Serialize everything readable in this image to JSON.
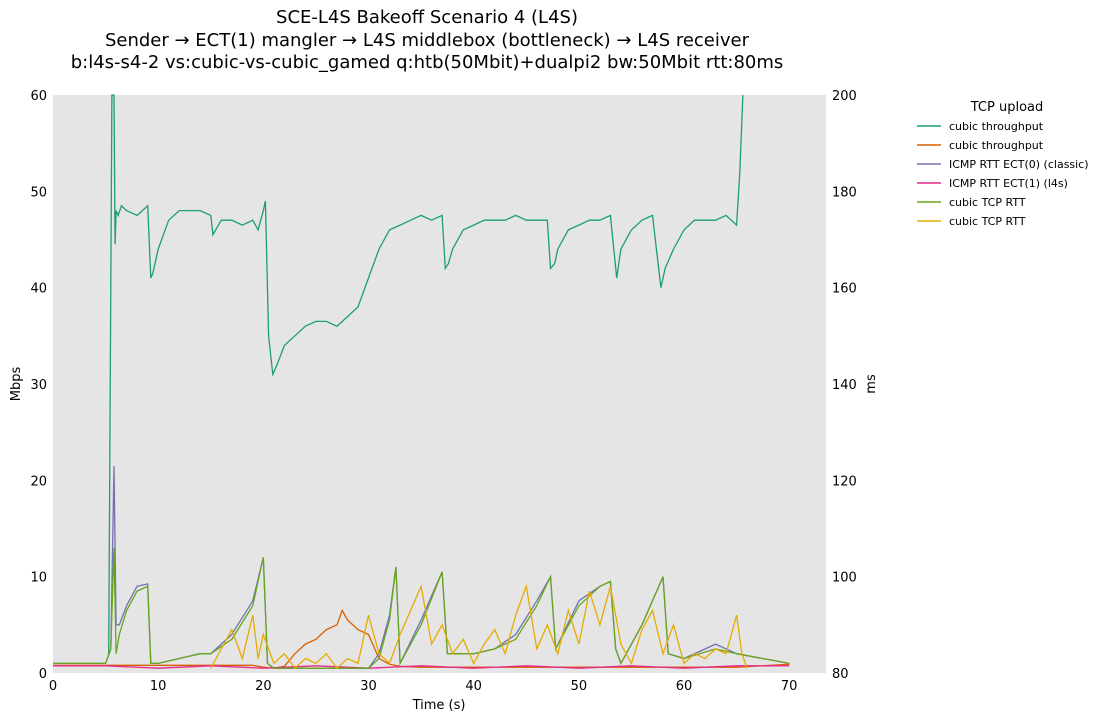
{
  "chart_data": {
    "type": "line",
    "title_lines": [
      "SCE-L4S Bakeoff Scenario 4 (L4S)",
      "Sender → ECT(1) mangler → L4S middlebox (bottleneck) → L4S receiver",
      "b:l4s-s4-2 vs:cubic-vs-cubic_gamed q:htb(50Mbit)+dualpi2 bw:50Mbit rtt:80ms"
    ],
    "xlabel": "Time (s)",
    "ylabel_left": "Mbps",
    "ylabel_right": "ms",
    "xlim": [
      0,
      73.5
    ],
    "ylim_left": [
      0,
      60
    ],
    "ylim_right": [
      80,
      200
    ],
    "xticks": [
      0,
      10,
      20,
      30,
      40,
      50,
      60,
      70
    ],
    "yticks_left": [
      0,
      10,
      20,
      30,
      40,
      50,
      60
    ],
    "yticks_right": [
      80,
      100,
      120,
      140,
      160,
      180,
      200
    ],
    "background_color": "#e5e5e5",
    "grid": false,
    "legend": {
      "title": "TCP upload",
      "placement": "outside-right"
    },
    "series": [
      {
        "name": "cubic throughput",
        "axis": "left",
        "color": "#1b9e77",
        "x": [
          5.3,
          5.6,
          5.8,
          5.9,
          6.0,
          6.2,
          6.5,
          7,
          8,
          9,
          9.3,
          9.5,
          10,
          11,
          12,
          13,
          14,
          15,
          15.2,
          16,
          17,
          18,
          19,
          19.5,
          20,
          20.2,
          20.5,
          20.9,
          21.3,
          22,
          23,
          24,
          25,
          26,
          27,
          28,
          29,
          30,
          31,
          32,
          33,
          34,
          35,
          36,
          37,
          37.3,
          37.6,
          38,
          39,
          40,
          41,
          42,
          43,
          44,
          45,
          46,
          47,
          47.3,
          47.7,
          48,
          49,
          50,
          51,
          52,
          53,
          53.6,
          54,
          55,
          56,
          57,
          57.8,
          58.2,
          59,
          60,
          61,
          62,
          63,
          64,
          65,
          65.3,
          65.6
        ],
        "y": [
          2,
          60,
          60,
          44.5,
          48,
          47.5,
          48.5,
          48,
          47.5,
          48.5,
          41,
          41.5,
          44,
          47,
          48,
          48,
          48,
          47.5,
          45.5,
          47,
          47,
          46.5,
          47,
          46,
          48,
          49,
          35,
          31,
          32,
          34,
          35,
          36,
          36.5,
          36.5,
          36,
          37,
          38,
          41,
          44,
          46,
          46.5,
          47,
          47.5,
          47,
          47.5,
          42,
          42.5,
          44,
          46,
          46.5,
          47,
          47,
          47,
          47.5,
          47,
          47,
          47,
          42,
          42.5,
          44,
          46,
          46.5,
          47,
          47,
          47.5,
          41,
          44,
          46,
          47,
          47.5,
          40,
          42,
          44,
          46,
          47,
          47,
          47,
          47.5,
          46.5,
          52,
          60
        ]
      },
      {
        "name": "cubic throughput",
        "axis": "left",
        "color": "#d95f02",
        "x": [
          0,
          5,
          10,
          15,
          19,
          20,
          21,
          22,
          23,
          24,
          25,
          26,
          27,
          27.5,
          28,
          29,
          30,
          31,
          32,
          33,
          35,
          40,
          45,
          50,
          55,
          60,
          65,
          70
        ],
        "y": [
          0.8,
          0.8,
          0.8,
          0.8,
          0.8,
          0.6,
          0.5,
          0.7,
          2,
          3,
          3.5,
          4.5,
          5,
          6.5,
          5.5,
          4.5,
          4,
          1.5,
          0.9,
          0.7,
          0.6,
          0.6,
          0.6,
          0.6,
          0.6,
          0.6,
          0.6,
          0.9
        ]
      },
      {
        "name": "ICMP RTT ECT(0) (classic)",
        "axis": "right",
        "color": "#7570b3",
        "x": [
          0,
          5,
          5.5,
          5.8,
          6.0,
          6.3,
          7,
          8,
          9,
          9.3,
          10,
          12,
          14,
          15,
          17,
          19,
          20,
          20.4,
          21,
          25,
          30,
          31,
          32,
          32.6,
          33,
          35,
          37,
          37.5,
          40,
          42,
          44,
          46,
          47.3,
          47.8,
          50,
          52,
          53,
          53.5,
          54,
          56,
          58,
          58.5,
          60,
          63,
          65,
          70
        ],
        "y": [
          82,
          82,
          85,
          123,
          90,
          90,
          94,
          98,
          98.5,
          82,
          82,
          83,
          84,
          84,
          88,
          95,
          104,
          82,
          81,
          81,
          81,
          84,
          92,
          102,
          82,
          91,
          101,
          84,
          84,
          85,
          88,
          95,
          100,
          85,
          95,
          98,
          99,
          85,
          82,
          90,
          100,
          84,
          83,
          86,
          84,
          82
        ]
      },
      {
        "name": "ICMP RTT ECT(1) (l4s)",
        "axis": "right",
        "color": "#e7298a",
        "x": [
          0,
          5,
          10,
          15,
          20,
          25,
          30,
          35,
          40,
          45,
          50,
          55,
          60,
          65,
          70
        ],
        "y": [
          81.5,
          81.5,
          81,
          81.5,
          81,
          81.5,
          81,
          81.5,
          81,
          81.5,
          81,
          81.5,
          81,
          81.5,
          81.5
        ]
      },
      {
        "name": "cubic TCP RTT",
        "axis": "right",
        "color": "#66a61e",
        "x": [
          0,
          5,
          5.5,
          5.8,
          6.0,
          6.3,
          7,
          8,
          9,
          9.3,
          10,
          12,
          14,
          15,
          17,
          19,
          20,
          20.4,
          21,
          25,
          30,
          31,
          32,
          32.6,
          33,
          35,
          37,
          37.5,
          40,
          42,
          44,
          46,
          47.3,
          47.8,
          50,
          52,
          53,
          53.5,
          54,
          56,
          58,
          58.5,
          60,
          63,
          65,
          70
        ],
        "y": [
          82,
          82,
          85,
          106,
          84,
          88,
          93,
          97,
          98,
          82,
          82,
          83,
          84,
          84,
          87,
          94,
          104,
          82,
          81,
          81,
          81,
          83,
          91,
          102,
          82,
          90,
          101,
          84,
          84,
          85,
          87,
          94,
          100,
          85,
          94,
          98,
          99,
          85,
          82,
          90,
          100,
          84,
          83,
          85,
          84,
          82
        ]
      },
      {
        "name": "cubic TCP RTT",
        "axis": "right",
        "color": "#e6ab02",
        "x": [
          15,
          16,
          17,
          18,
          19,
          19.5,
          20,
          21,
          22,
          23,
          24,
          25,
          26,
          27,
          28,
          29,
          30,
          31,
          32,
          33,
          34,
          35,
          36,
          37,
          38,
          39,
          40,
          41,
          42,
          43,
          44,
          45,
          46,
          47,
          48,
          49,
          50,
          51,
          52,
          53,
          54,
          55,
          56,
          57,
          58,
          59,
          60,
          61,
          62,
          63,
          64,
          65,
          65.5,
          66
        ],
        "y": [
          81,
          85,
          89,
          83,
          92,
          83,
          88,
          82,
          84,
          81,
          83,
          82,
          84,
          81,
          83,
          82,
          92,
          84,
          82,
          88,
          93,
          98,
          86,
          90,
          84,
          87,
          82,
          86,
          89,
          84,
          92,
          98,
          85,
          90,
          84,
          93,
          86,
          97,
          90,
          98,
          86,
          82,
          89,
          93,
          84,
          90,
          82,
          84,
          83,
          85,
          84,
          92,
          84,
          81
        ]
      }
    ]
  }
}
